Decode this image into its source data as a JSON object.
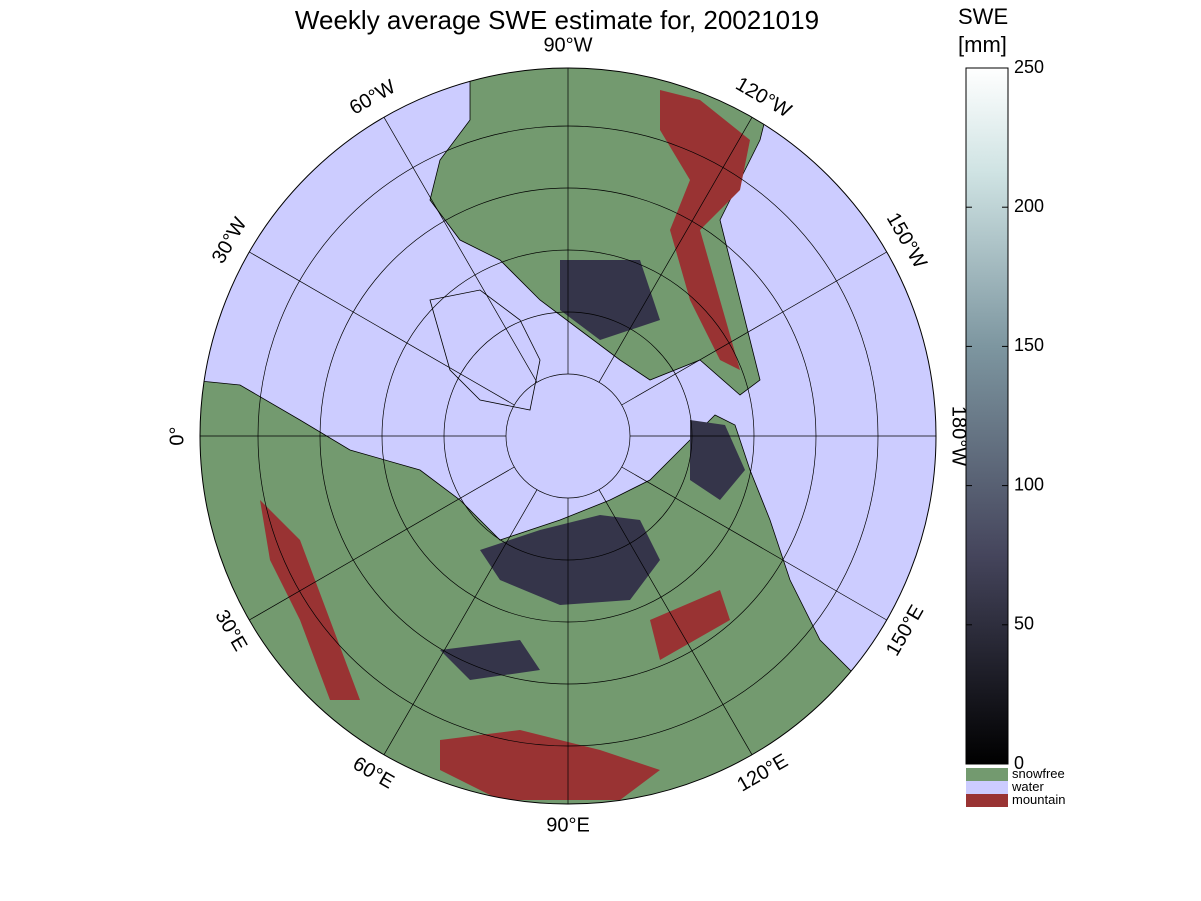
{
  "title": "Weekly average SWE estimate for, 20021019",
  "map": {
    "longitude_labels": [
      "0°",
      "30°E",
      "60°E",
      "90°E",
      "120°E",
      "150°E",
      "180°W",
      "150°W",
      "120°W",
      "90°W",
      "60°W",
      "30°W"
    ]
  },
  "colorbar": {
    "label_lines": [
      "SWE",
      "[mm]"
    ],
    "lim": [
      0,
      250
    ],
    "ticks": [
      0,
      50,
      100,
      150,
      200,
      250
    ],
    "legend": [
      {
        "name": "snowfree",
        "color": "#739a6f"
      },
      {
        "name": "water",
        "color": "#ccccff"
      },
      {
        "name": "mountain",
        "color": "#993333"
      }
    ]
  }
}
